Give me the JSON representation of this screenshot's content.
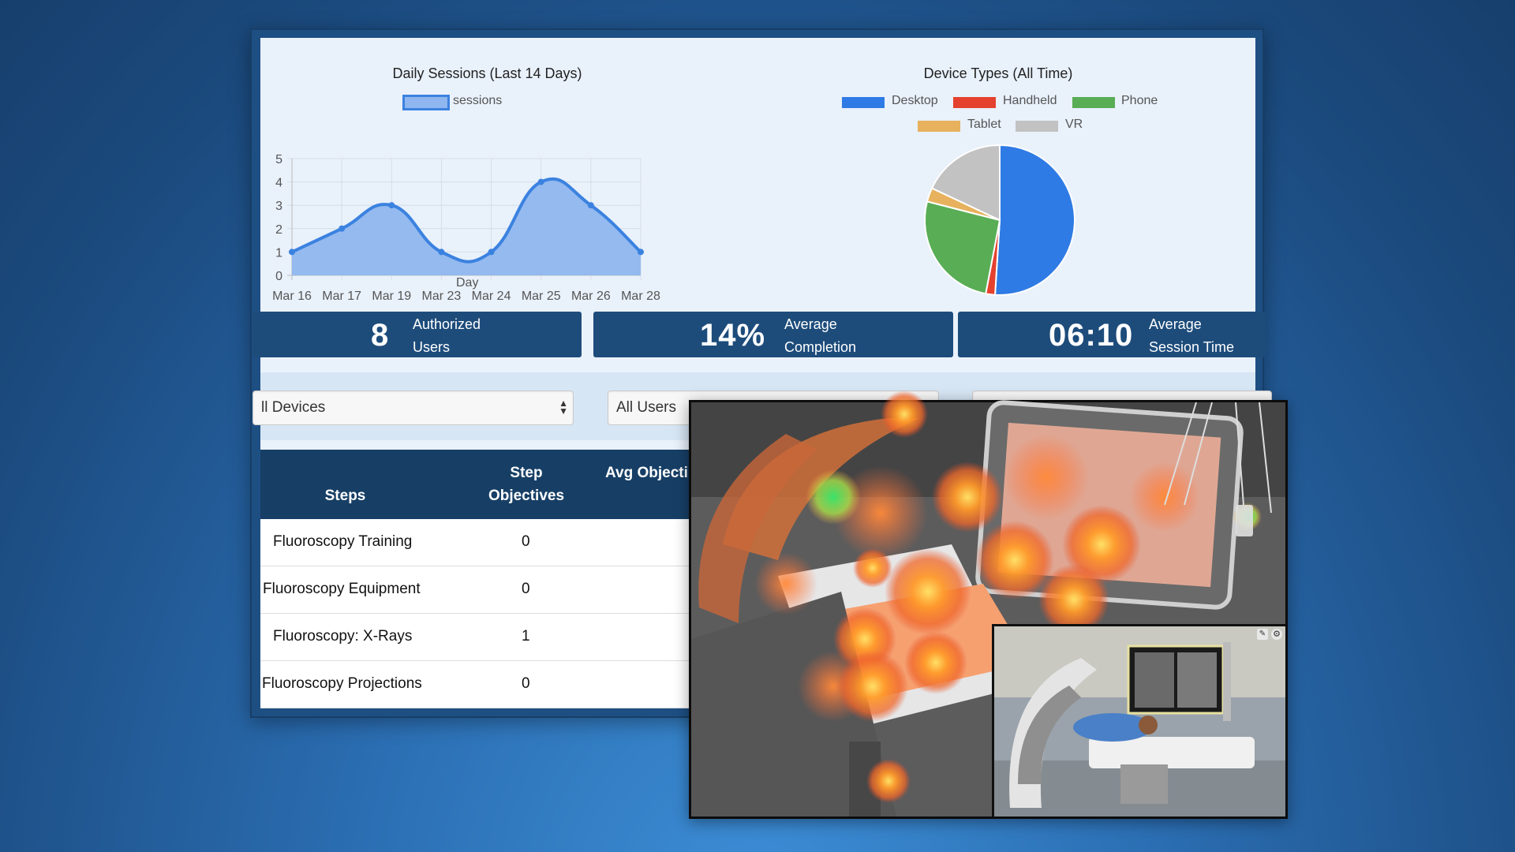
{
  "charts": {
    "sessions": {
      "title": "Daily Sessions (Last 14 Days)",
      "legend": "sessions",
      "xlabel": "Day",
      "color": "#3b82e0"
    },
    "devices": {
      "title": "Device Types (All Time)",
      "legend": [
        "Desktop",
        "Handheld",
        "Phone",
        "Tablet",
        "VR"
      ]
    }
  },
  "chart_data": [
    {
      "type": "area",
      "title": "Daily Sessions (Last 14 Days)",
      "categories": [
        "Mar 16",
        "Mar 17",
        "Mar 19",
        "Mar 23",
        "Mar 24",
        "Mar 25",
        "Mar 26",
        "Mar 28"
      ],
      "series": [
        {
          "name": "sessions",
          "values": [
            1,
            2,
            3,
            1,
            1,
            4,
            3,
            1
          ]
        }
      ],
      "xlabel": "Day",
      "ylabel": "",
      "ylim": [
        0,
        5
      ],
      "yticks": [
        "0",
        "1",
        "2",
        "3",
        "4",
        "5"
      ],
      "grid": true,
      "legend": "top"
    },
    {
      "type": "pie",
      "title": "Device Types (All Time)",
      "labels": [
        "Desktop",
        "Handheld",
        "Phone",
        "Tablet",
        "VR"
      ],
      "values": [
        51,
        2,
        26,
        3,
        18
      ],
      "colors": [
        "#2f7be5",
        "#e5412f",
        "#58ad55",
        "#e7b15d",
        "#c2c2c2"
      ],
      "legend": "top"
    }
  ],
  "stats": [
    {
      "value": "8",
      "label_line1": "Authorized",
      "label_line2": "Users"
    },
    {
      "value": "14%",
      "label_line1": "Average",
      "label_line2": "Completion"
    },
    {
      "value": "06:10",
      "label_line1": "Average",
      "label_line2": "Session Time"
    }
  ],
  "filters": {
    "device": "ll Devices",
    "user": "All Users"
  },
  "table": {
    "headers": {
      "steps": "Steps",
      "objectives_line1": "Step",
      "objectives_line2": "Objectives",
      "avg": "Avg Objecti"
    },
    "rows": [
      {
        "step": "Fluoroscopy Training",
        "objectives": "0"
      },
      {
        "step": "Fluoroscopy Equipment",
        "objectives": "0"
      },
      {
        "step": "Fluoroscopy: X-Rays",
        "objectives": "1"
      },
      {
        "step": "Fluoroscopy Projections",
        "objectives": "0"
      }
    ]
  },
  "overlay": {
    "icons": [
      "pencil-icon",
      "settings-icon"
    ]
  }
}
